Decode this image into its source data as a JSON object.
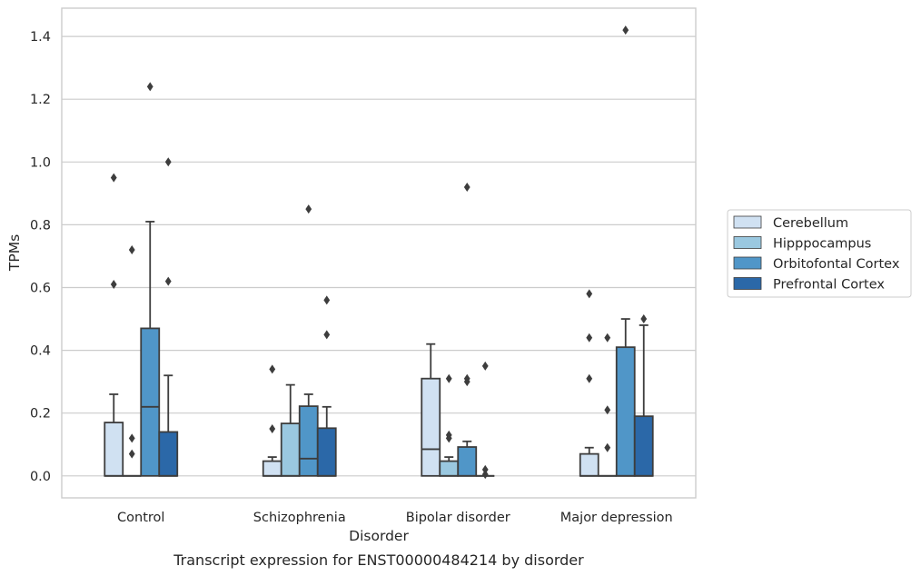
{
  "chart_data": {
    "type": "box",
    "title": "",
    "caption": "Transcript expression for ENST00000484214 by disorder",
    "xlabel": "Disorder",
    "ylabel": "TPMs",
    "categories": [
      "Control",
      "Schizophrenia",
      "Bipolar disorder",
      "Major depression"
    ],
    "ylim": [
      -0.07,
      1.49
    ],
    "yticks": [
      0.0,
      0.2,
      0.4,
      0.6,
      0.8,
      1.0,
      1.2,
      1.4
    ],
    "ytick_labels": [
      "0.0",
      "0.2",
      "0.4",
      "0.6",
      "0.8",
      "1.0",
      "1.2",
      "1.4"
    ],
    "grid": "y",
    "legend_position": "outside-right",
    "series": [
      {
        "name": "Cerebellum",
        "color": "#d0e1f2",
        "boxes": [
          {
            "q1": 0.0,
            "median": 0.0,
            "q3": 0.17,
            "whisker_low": 0.0,
            "whisker_high": 0.26,
            "outliers": [
              0.61,
              0.95
            ]
          },
          {
            "q1": 0.0,
            "median": 0.0,
            "q3": 0.047,
            "whisker_low": 0.0,
            "whisker_high": 0.06,
            "outliers": [
              0.15,
              0.34
            ]
          },
          {
            "q1": 0.0,
            "median": 0.085,
            "q3": 0.31,
            "whisker_low": 0.0,
            "whisker_high": 0.42,
            "outliers": []
          },
          {
            "q1": 0.0,
            "median": 0.0,
            "q3": 0.07,
            "whisker_low": 0.0,
            "whisker_high": 0.09,
            "outliers": [
              0.31,
              0.44,
              0.58
            ]
          }
        ]
      },
      {
        "name": "Hipppocampus",
        "color": "#9ac8e0",
        "boxes": [
          {
            "q1": 0.0,
            "median": 0.0,
            "q3": 0.0,
            "whisker_low": 0.0,
            "whisker_high": 0.0,
            "outliers": [
              0.07,
              0.12,
              0.72
            ]
          },
          {
            "q1": 0.0,
            "median": 0.0,
            "q3": 0.167,
            "whisker_low": 0.0,
            "whisker_high": 0.29,
            "outliers": []
          },
          {
            "q1": 0.0,
            "median": 0.0,
            "q3": 0.047,
            "whisker_low": 0.0,
            "whisker_high": 0.06,
            "outliers": [
              0.12,
              0.13,
              0.31
            ]
          },
          {
            "q1": 0.0,
            "median": 0.0,
            "q3": 0.0,
            "whisker_low": 0.0,
            "whisker_high": 0.0,
            "outliers": [
              0.09,
              0.21,
              0.44
            ]
          }
        ]
      },
      {
        "name": "Orbitofontal Cortex",
        "color": "#5096c8",
        "boxes": [
          {
            "q1": 0.0,
            "median": 0.22,
            "q3": 0.47,
            "whisker_low": 0.0,
            "whisker_high": 0.81,
            "outliers": [
              1.24
            ]
          },
          {
            "q1": 0.0,
            "median": 0.055,
            "q3": 0.222,
            "whisker_low": 0.0,
            "whisker_high": 0.26,
            "outliers": [
              0.85
            ]
          },
          {
            "q1": 0.0,
            "median": 0.0,
            "q3": 0.092,
            "whisker_low": 0.0,
            "whisker_high": 0.11,
            "outliers": [
              0.3,
              0.31,
              0.92
            ]
          },
          {
            "q1": 0.0,
            "median": 0.0,
            "q3": 0.41,
            "whisker_low": 0.0,
            "whisker_high": 0.5,
            "outliers": [
              1.42
            ]
          }
        ]
      },
      {
        "name": "Prefrontal Cortex",
        "color": "#2b68a8",
        "boxes": [
          {
            "q1": 0.0,
            "median": 0.0,
            "q3": 0.14,
            "whisker_low": 0.0,
            "whisker_high": 0.32,
            "outliers": [
              0.62,
              1.0
            ]
          },
          {
            "q1": 0.0,
            "median": 0.0,
            "q3": 0.152,
            "whisker_low": 0.0,
            "whisker_high": 0.22,
            "outliers": [
              0.45,
              0.56
            ]
          },
          {
            "q1": 0.0,
            "median": 0.0,
            "q3": 0.0,
            "whisker_low": 0.0,
            "whisker_high": 0.0,
            "outliers": [
              0.005,
              0.02,
              0.35
            ]
          },
          {
            "q1": 0.0,
            "median": 0.0,
            "q3": 0.19,
            "whisker_low": 0.0,
            "whisker_high": 0.48,
            "outliers": [
              0.5
            ]
          }
        ]
      }
    ]
  }
}
